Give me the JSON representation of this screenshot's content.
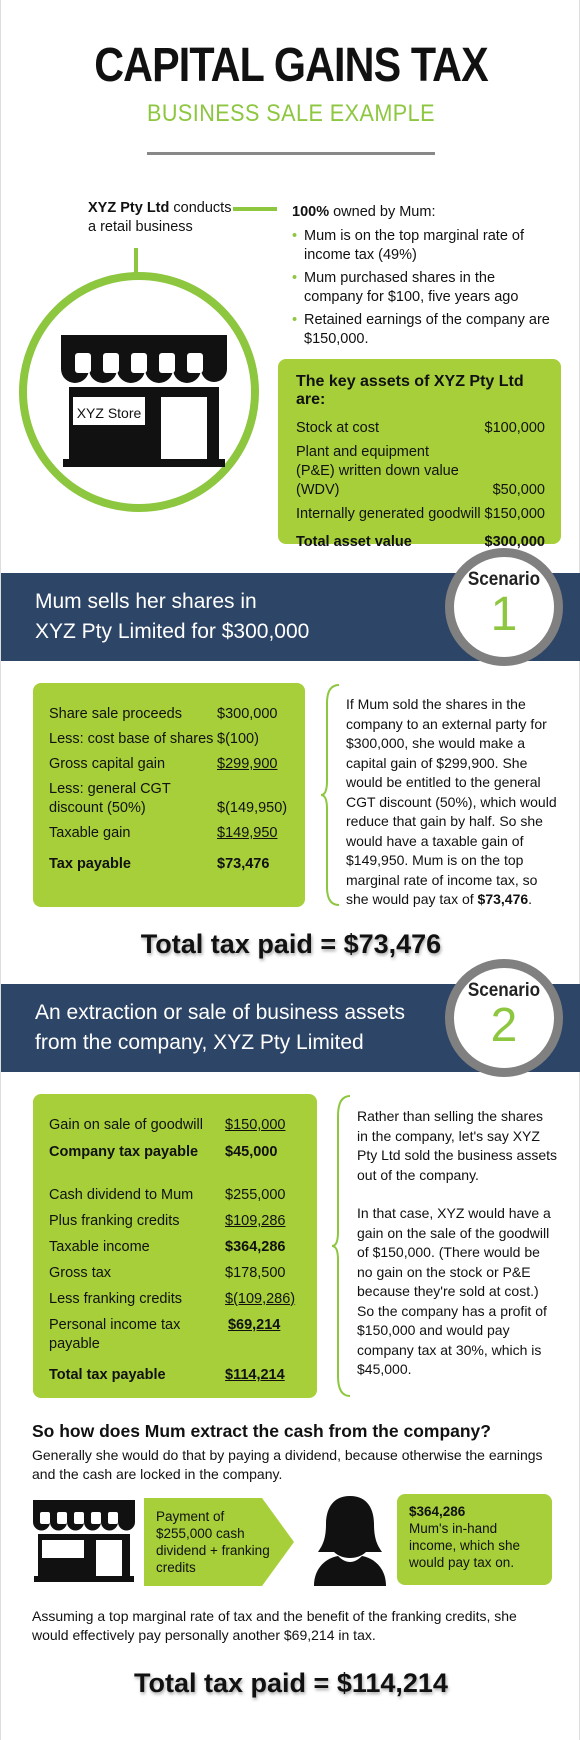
{
  "header": {
    "title": "CAPITAL GAINS TAX",
    "subtitle": "BUSINESS SALE EXAMPLE"
  },
  "intro": {
    "company_name": "XYZ Pty Ltd",
    "company_desc_1": "conducts",
    "company_desc_2": "a retail business",
    "store_sign": "XYZ Store",
    "owner_heading_bold": "100%",
    "owner_heading_rest": " owned by Mum:",
    "bullets": [
      "Mum is on the top marginal rate of income tax (49%)",
      "Mum purchased shares in the company for $100, five years ago",
      "Retained earnings of the company are $150,000."
    ]
  },
  "assets": {
    "heading": "The key assets of XYZ Pty Ltd are:",
    "rows": [
      {
        "label": "Stock at cost",
        "value": "$100,000"
      },
      {
        "label": "Plant and equipment (P&E) written down value (WDV)",
        "value": "$50,000"
      },
      {
        "label": "Internally generated goodwill",
        "value": "$150,000"
      }
    ],
    "total_label": "Total asset value",
    "total_value": "$300,000"
  },
  "scenario1": {
    "banner_line1": "Mum sells her shares in",
    "banner_line2": "XYZ Pty Limited for $300,000",
    "badge_word": "Scenario",
    "badge_num": "1",
    "rows": [
      {
        "label": "Share sale proceeds",
        "value": "$300,000"
      },
      {
        "label": "Less: cost base of shares",
        "value": "$(100)"
      },
      {
        "label": "Gross capital gain",
        "value": "$299,900"
      },
      {
        "label": "Less: general CGT",
        "value": ""
      },
      {
        "label": "discount (50%)",
        "value": "$(149,950)"
      },
      {
        "label": "Taxable gain",
        "value": "$149,950"
      }
    ],
    "tax_label": "Tax payable",
    "tax_value": "$73,476",
    "explanation": "If Mum sold the shares in the company to an external party for $300,000, she would make a capital gain of $299,900. She would be entitled to the general CGT discount (50%), which would reduce that gain by half. So she would have a taxable gain of $149,950.  Mum is on the top marginal rate of income tax, so she would pay tax of ",
    "explanation_bold": "$73,476",
    "explanation_end": ".",
    "total": "Total tax paid = $73,476"
  },
  "scenario2": {
    "banner_line1": "An extraction or sale of business assets",
    "banner_line2": "from the company, XYZ Pty Limited",
    "badge_word": "Scenario",
    "badge_num": "2",
    "gain_label": "Gain on sale of goodwill",
    "gain_value": "$150,000",
    "company_tax_label": "Company tax payable",
    "company_tax_value": "$45,000",
    "rows": [
      {
        "label": "Cash dividend to Mum",
        "value": "$255,000"
      },
      {
        "label": "Plus franking credits",
        "value": "$109,286"
      },
      {
        "label": "Taxable income",
        "value": "$364,286"
      },
      {
        "label": "Gross tax",
        "value": "$178,500"
      },
      {
        "label": "Less franking credits",
        "value": "$(109,286)"
      },
      {
        "label": "Personal income tax payable",
        "value": "$69,214"
      }
    ],
    "total_label": "Total tax payable",
    "total_value": "$114,214",
    "para1": "Rather than selling the shares in the company, let's say XYZ Pty Ltd sold the business assets out of the company.",
    "para2": "In that case, XYZ would have a gain on the sale of the goodwill of $150,000. (There would be no gain on the stock or P&E because they're sold at cost.) So the company has a profit of $150,000 and would pay company tax at 30%, which is $45,000."
  },
  "extract": {
    "heading": "So how does Mum extract the cash from the company?",
    "text": "Generally she would do that by paying a dividend, because otherwise the earnings and the cash are locked in the company.",
    "arrow_text": "Payment of $255,000 cash dividend + franking credits",
    "income_amount": "$364,286",
    "income_text": "Mum's in-hand income, which she would pay tax on.",
    "footer": "Assuming a top marginal rate of tax and the benefit of the franking credits, she would effectively pay personally another $69,214 in tax.",
    "total": "Total tax paid = $114,214"
  },
  "colors": {
    "accent_green": "#a6cf3a",
    "navy": "#2d4566",
    "circle_grey": "#808080"
  }
}
